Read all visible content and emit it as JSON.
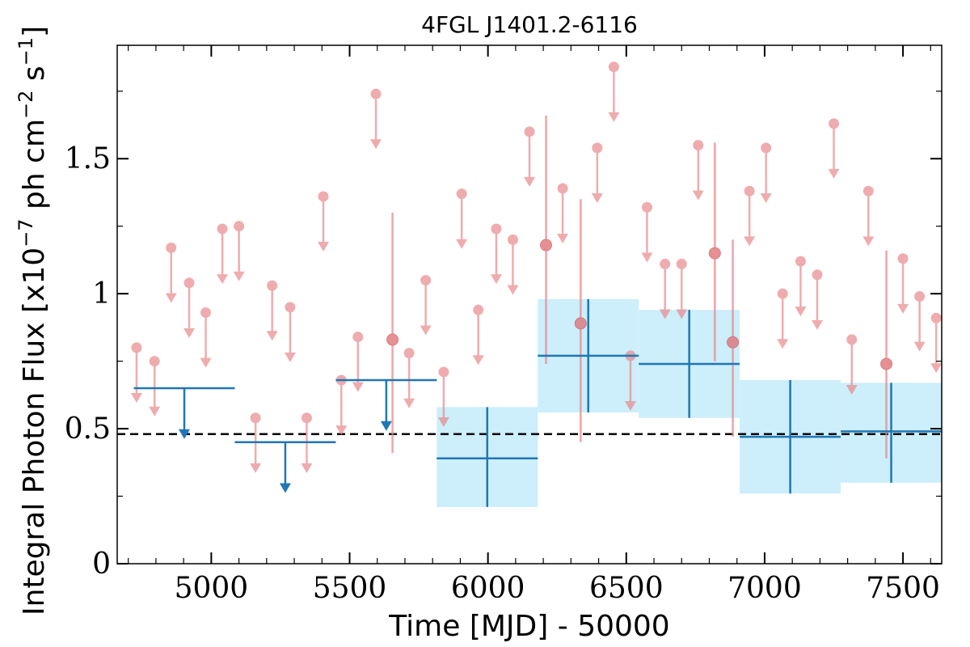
{
  "chart_data": {
    "type": "scatter",
    "title": "4FGL J1401.2-6116",
    "xlabel": "Time [MJD] - 50000",
    "ylabel_parts": [
      "Integral Photon Flux [x10",
      "−7",
      " ph cm",
      "−2",
      " s",
      "−1",
      "]"
    ],
    "xlim": [
      4660,
      7640
    ],
    "ylim": [
      0,
      1.92
    ],
    "xticks": [
      5000,
      5500,
      6000,
      6500,
      7000,
      7500
    ],
    "xtick_labels": [
      "5000",
      "5500",
      "6000",
      "6500",
      "7000",
      "7500"
    ],
    "yticks": [
      0,
      0.5,
      1,
      1.5
    ],
    "ytick_labels": [
      "0",
      "0.5",
      "1",
      "1.5"
    ],
    "reference_line": {
      "y": 0.48,
      "style": "dashed",
      "color": "#000000"
    },
    "colors": {
      "short_bins": "#e8898c",
      "long_bins": "#1f77b4",
      "band": "#cdeefb"
    },
    "short_bin_upper_limits": [
      {
        "x": 4730,
        "y": 0.8
      },
      {
        "x": 4795,
        "y": 0.75
      },
      {
        "x": 4855,
        "y": 1.17
      },
      {
        "x": 4920,
        "y": 1.04
      },
      {
        "x": 4980,
        "y": 0.93
      },
      {
        "x": 5040,
        "y": 1.24
      },
      {
        "x": 5100,
        "y": 1.25
      },
      {
        "x": 5160,
        "y": 0.54
      },
      {
        "x": 5220,
        "y": 1.03
      },
      {
        "x": 5285,
        "y": 0.95
      },
      {
        "x": 5345,
        "y": 0.54
      },
      {
        "x": 5405,
        "y": 1.36
      },
      {
        "x": 5470,
        "y": 0.68
      },
      {
        "x": 5530,
        "y": 0.84
      },
      {
        "x": 5595,
        "y": 1.74
      },
      {
        "x": 5715,
        "y": 0.78
      },
      {
        "x": 5775,
        "y": 1.05
      },
      {
        "x": 5840,
        "y": 0.71
      },
      {
        "x": 5905,
        "y": 1.37
      },
      {
        "x": 5965,
        "y": 0.94
      },
      {
        "x": 6030,
        "y": 1.24
      },
      {
        "x": 6090,
        "y": 1.2
      },
      {
        "x": 6150,
        "y": 1.6
      },
      {
        "x": 6270,
        "y": 1.39
      },
      {
        "x": 6395,
        "y": 1.54
      },
      {
        "x": 6455,
        "y": 1.84
      },
      {
        "x": 6515,
        "y": 0.77
      },
      {
        "x": 6575,
        "y": 1.32
      },
      {
        "x": 6640,
        "y": 1.11
      },
      {
        "x": 6700,
        "y": 1.11
      },
      {
        "x": 6760,
        "y": 1.55
      },
      {
        "x": 6945,
        "y": 1.38
      },
      {
        "x": 7005,
        "y": 1.54
      },
      {
        "x": 7065,
        "y": 1.0
      },
      {
        "x": 7130,
        "y": 1.12
      },
      {
        "x": 7190,
        "y": 1.07
      },
      {
        "x": 7250,
        "y": 1.63
      },
      {
        "x": 7315,
        "y": 0.83
      },
      {
        "x": 7375,
        "y": 1.38
      },
      {
        "x": 7500,
        "y": 1.13
      },
      {
        "x": 7560,
        "y": 0.99
      },
      {
        "x": 7620,
        "y": 0.91
      }
    ],
    "short_bin_detections": [
      {
        "x": 5655,
        "y": 0.83,
        "ylo": 0.41,
        "yhi": 1.3
      },
      {
        "x": 6210,
        "y": 1.18,
        "ylo": 0.74,
        "yhi": 1.66
      },
      {
        "x": 6335,
        "y": 0.89,
        "ylo": 0.45,
        "yhi": 1.35
      },
      {
        "x": 6820,
        "y": 1.15,
        "ylo": 0.75,
        "yhi": 1.56
      },
      {
        "x": 6885,
        "y": 0.82,
        "ylo": 0.47,
        "yhi": 1.2
      },
      {
        "x": 7440,
        "y": 0.74,
        "ylo": 0.39,
        "yhi": 1.16
      }
    ],
    "long_bin_upper_limits": [
      {
        "x0": 4720,
        "x1": 5085,
        "y": 0.65
      },
      {
        "x0": 5085,
        "x1": 5450,
        "y": 0.45
      },
      {
        "x0": 5450,
        "x1": 5815,
        "y": 0.68
      }
    ],
    "long_bin_detections": [
      {
        "x0": 5815,
        "x1": 6180,
        "y": 0.39,
        "ylo": 0.21,
        "yhi": 0.58
      },
      {
        "x0": 6180,
        "x1": 6545,
        "y": 0.77,
        "ylo": 0.56,
        "yhi": 0.98
      },
      {
        "x0": 6545,
        "x1": 6910,
        "y": 0.74,
        "ylo": 0.54,
        "yhi": 0.94
      },
      {
        "x0": 6910,
        "x1": 7275,
        "y": 0.47,
        "ylo": 0.26,
        "yhi": 0.68
      },
      {
        "x0": 7275,
        "x1": 7640,
        "y": 0.49,
        "ylo": 0.3,
        "yhi": 0.67
      }
    ]
  }
}
